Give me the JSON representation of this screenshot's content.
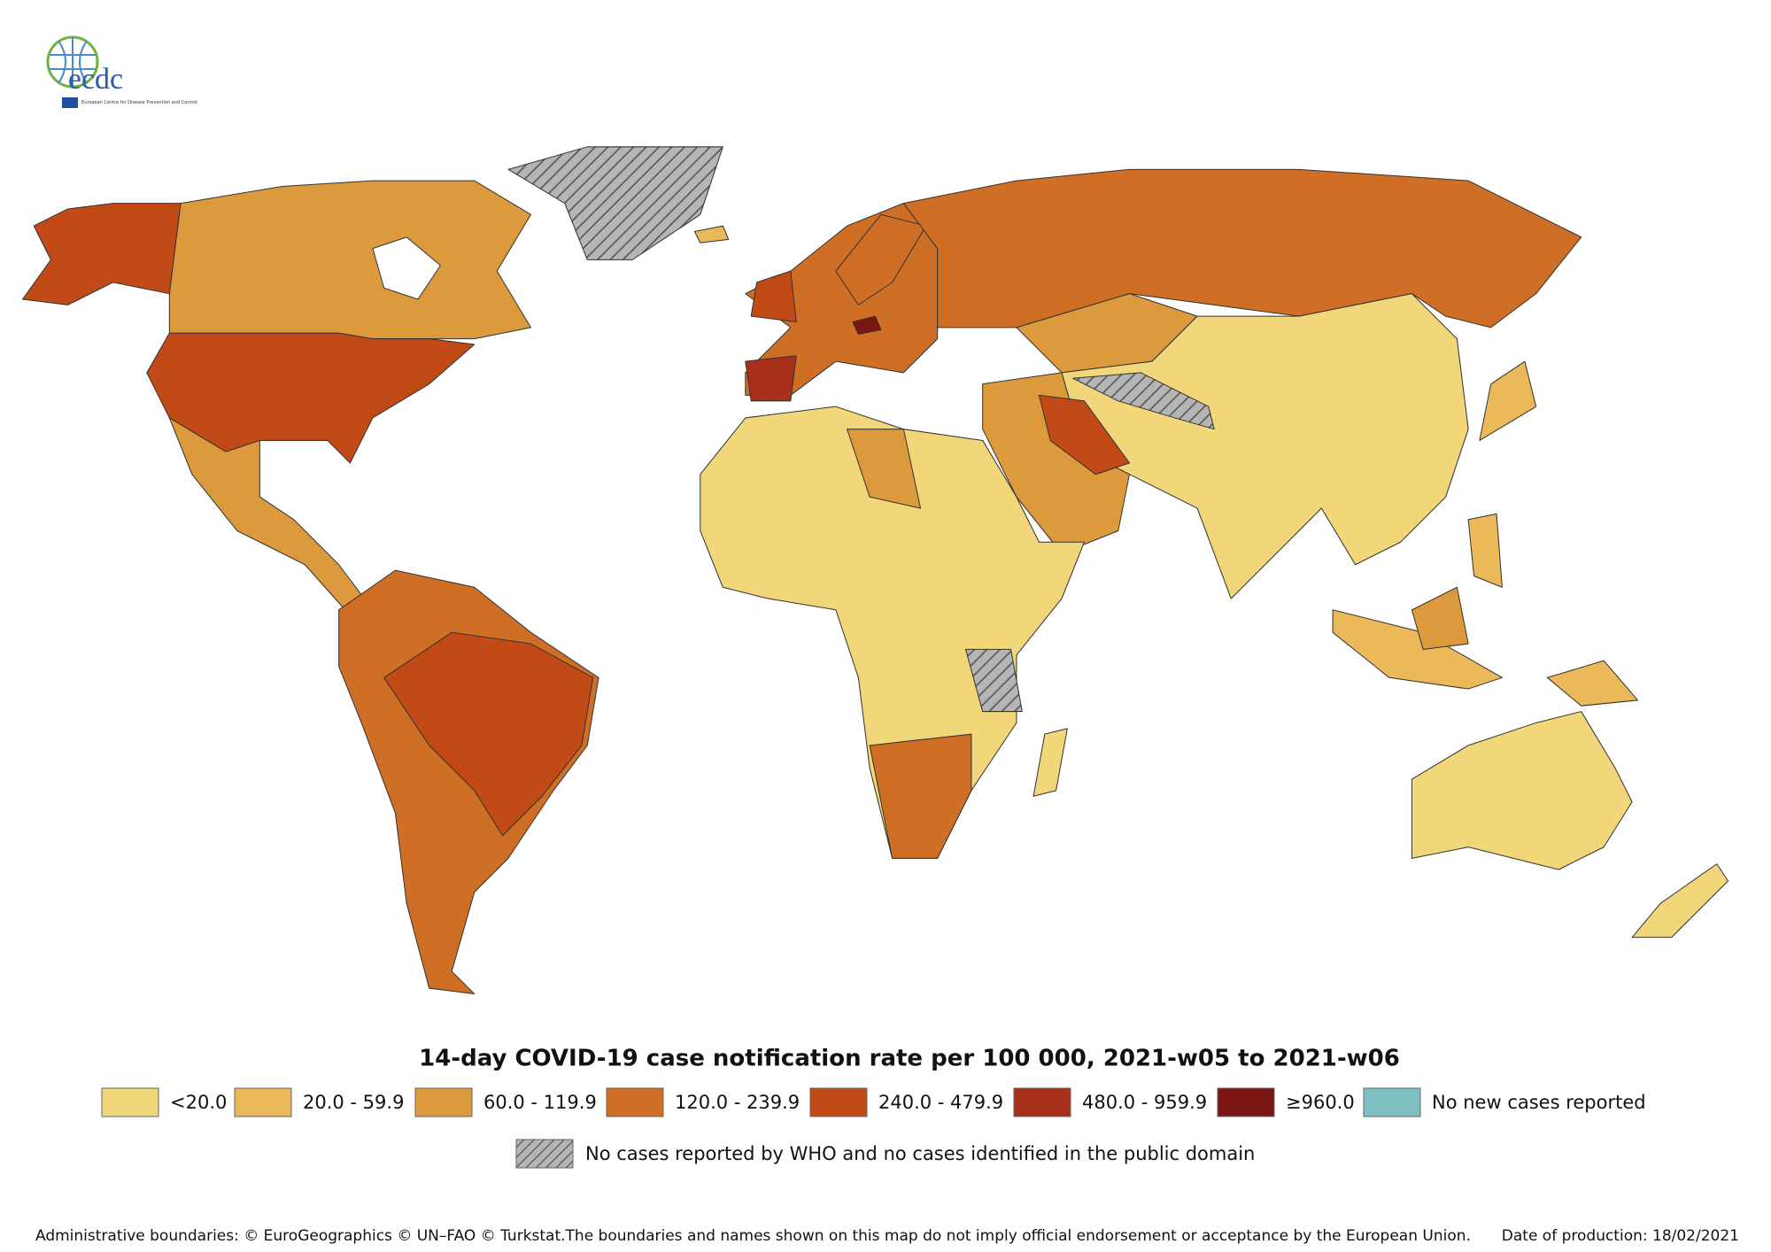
{
  "logo": {
    "name": "ecdc",
    "subtitle": "European Centre for Disease Prevention and Control"
  },
  "title": "14-day COVID-19 case notification rate per 100 000, 2021-w05 to 2021-w06",
  "legend": {
    "items": [
      {
        "label": "<20.0",
        "color": "#f2d77a"
      },
      {
        "label": "20.0 - 59.9",
        "color": "#ebb85a"
      },
      {
        "label": "60.0 - 119.9",
        "color": "#dd9a3c"
      },
      {
        "label": "120.0 - 239.9",
        "color": "#cf6f25"
      },
      {
        "label": "240.0 - 479.9",
        "color": "#c24a17"
      },
      {
        "label": "480.0 - 959.9",
        "color": "#a8301a"
      },
      {
        "label": "≥960.0",
        "color": "#7a1512"
      },
      {
        "label": "No new cases reported",
        "color": "#7fbfc4"
      }
    ],
    "no_data": {
      "label": "No cases reported by WHO and no cases identified in the public domain"
    }
  },
  "footer": {
    "credits": "Administrative boundaries: © EuroGeographics © UN–FAO © Turkstat.The boundaries and names shown on this map do not imply official endorsement or acceptance by the European Union.",
    "date": "Date of production: 18/02/2021"
  }
}
